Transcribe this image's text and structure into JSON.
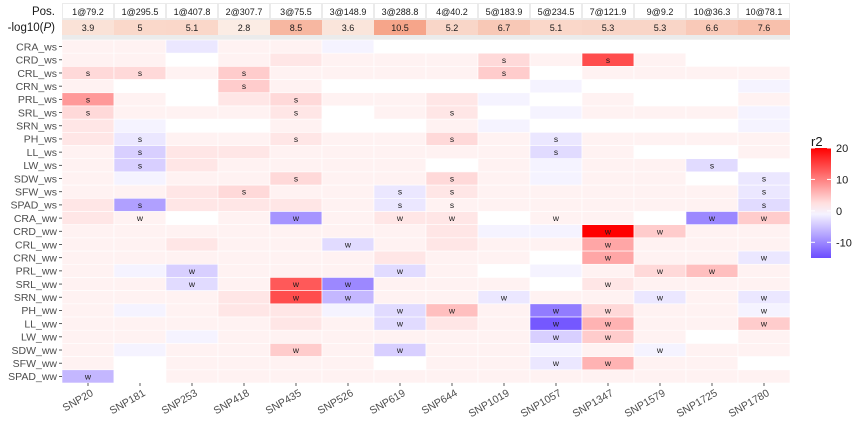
{
  "chart_data": {
    "type": "heatmap",
    "title": "",
    "xlabel": "",
    "ylabel": "",
    "header": {
      "pos_label": "Pos.",
      "logp_label": "-log10(P)",
      "positions": [
        "1@79.2",
        "1@295.5",
        "1@407.8",
        "2@307.7",
        "3@75.5",
        "3@148.9",
        "3@288.8",
        "4@40.2",
        "5@183.9",
        "5@234.5",
        "7@121.9",
        "9@9.2",
        "10@36.3",
        "10@78.1"
      ],
      "logp": [
        "3.9",
        "5",
        "5.1",
        "2.8",
        "8.5",
        "3.6",
        "10.5",
        "5.2",
        "6.7",
        "5.1",
        "5.3",
        "5.3",
        "6.6",
        "7.6"
      ]
    },
    "columns": [
      "SNP20",
      "SNP181",
      "SNP253",
      "SNP418",
      "SNP435",
      "SNP526",
      "SNP619",
      "SNP644",
      "SNP1019",
      "SNP1057",
      "SNP1347",
      "SNP1579",
      "SNP1725",
      "SNP1780"
    ],
    "rows": [
      "CRA_ws",
      "CRD_ws",
      "CRL_ws",
      "CRN_ws",
      "PRL_ws",
      "SRL_ws",
      "SRN_ws",
      "PH_ws",
      "LL_ws",
      "LW_ws",
      "SDW_ws",
      "SFW_ws",
      "SPAD_ws",
      "CRA_ww",
      "CRD_ww",
      "CRL_ww",
      "CRN_ww",
      "PRL_ww",
      "SRL_ww",
      "SRN_ww",
      "PH_ww",
      "LL_ww",
      "LW_ww",
      "SDW_ww",
      "SFW_ww",
      "SPAD_ww"
    ],
    "values": [
      [
        1,
        1,
        -2,
        1,
        1,
        -1,
        0,
        0,
        0,
        0,
        0,
        0,
        0,
        0
      ],
      [
        1,
        1,
        0,
        1,
        2,
        1,
        1,
        1,
        3,
        1,
        14,
        1,
        0,
        0
      ],
      [
        3,
        3,
        1,
        4,
        1,
        1,
        1,
        1,
        4,
        0,
        1,
        1,
        1,
        1
      ],
      [
        1,
        0,
        0,
        4,
        1,
        0,
        0,
        0,
        0,
        -1,
        0,
        0,
        0,
        -1
      ],
      [
        8,
        1,
        0,
        2,
        3,
        1,
        1,
        2,
        -1,
        0,
        1,
        0,
        0,
        1
      ],
      [
        3,
        1,
        1,
        1,
        2,
        0,
        1,
        2,
        0,
        -1,
        1,
        1,
        1,
        -1
      ],
      [
        2,
        -1,
        0,
        0,
        1,
        0,
        0,
        1,
        -1,
        0,
        0,
        0,
        0,
        -1
      ],
      [
        2,
        -2,
        1,
        1,
        2,
        1,
        1,
        3,
        1,
        -2,
        1,
        1,
        1,
        1
      ],
      [
        1,
        -4,
        2,
        2,
        1,
        1,
        1,
        1,
        1,
        -3,
        1,
        0,
        0,
        1
      ],
      [
        1,
        -4,
        2,
        1,
        1,
        1,
        1,
        0,
        1,
        -1,
        1,
        1,
        -3,
        0
      ],
      [
        1,
        -1,
        1,
        1,
        3,
        1,
        1,
        3,
        1,
        -1,
        1,
        1,
        0,
        -2
      ],
      [
        1,
        1,
        2,
        3,
        1,
        1,
        -2,
        2,
        1,
        1,
        1,
        1,
        1,
        -2
      ],
      [
        2,
        -8,
        2,
        2,
        2,
        1,
        -2,
        1,
        1,
        1,
        1,
        1,
        1,
        -3
      ],
      [
        2,
        1,
        0,
        1,
        -9,
        1,
        2,
        2,
        0,
        1,
        1,
        0,
        -10,
        4
      ],
      [
        1,
        1,
        1,
        1,
        1,
        1,
        1,
        2,
        -1,
        -1,
        20,
        4,
        1,
        1
      ],
      [
        1,
        1,
        2,
        1,
        1,
        -3,
        1,
        2,
        1,
        1,
        7,
        1,
        1,
        1
      ],
      [
        1,
        1,
        1,
        1,
        1,
        1,
        2,
        1,
        1,
        0,
        7,
        1,
        1,
        -2
      ],
      [
        1,
        -1,
        -4,
        1,
        1,
        1,
        -3,
        1,
        0,
        -1,
        1,
        3,
        5,
        1
      ],
      [
        1,
        1,
        -3,
        1,
        13,
        -10,
        1,
        1,
        1,
        0,
        2,
        1,
        1,
        1
      ],
      [
        1,
        1,
        1,
        2,
        14,
        -6,
        1,
        1,
        -2,
        1,
        1,
        -2,
        1,
        -2
      ],
      [
        1,
        -1,
        1,
        2,
        2,
        -1,
        -3,
        5,
        1,
        -11,
        3,
        1,
        1,
        -1
      ],
      [
        1,
        1,
        1,
        1,
        2,
        1,
        -3,
        2,
        1,
        -14,
        6,
        1,
        1,
        4
      ],
      [
        1,
        1,
        -1,
        1,
        1,
        1,
        1,
        1,
        1,
        -4,
        4,
        1,
        0,
        1
      ],
      [
        1,
        -1,
        1,
        1,
        4,
        1,
        -4,
        1,
        1,
        -1,
        1,
        -1,
        1,
        1
      ],
      [
        1,
        0,
        1,
        1,
        1,
        1,
        0,
        1,
        1,
        -2,
        6,
        1,
        1,
        0
      ],
      [
        -6,
        0,
        1,
        1,
        1,
        1,
        1,
        1,
        1,
        1,
        1,
        1,
        1,
        1
      ]
    ],
    "marks": [
      [
        "",
        "",
        "",
        "",
        "",
        "",
        "",
        "",
        "",
        "",
        "",
        "",
        "",
        ""
      ],
      [
        "",
        "",
        "",
        "",
        "",
        "",
        "",
        "",
        "s",
        "",
        "s",
        "",
        "",
        ""
      ],
      [
        "s",
        "s",
        "",
        "s",
        "",
        "",
        "",
        "",
        "s",
        "",
        "",
        "",
        "",
        ""
      ],
      [
        "",
        "",
        "",
        "s",
        "",
        "",
        "",
        "",
        "",
        "",
        "",
        "",
        "",
        ""
      ],
      [
        "s",
        "",
        "",
        "",
        "s",
        "",
        "",
        "",
        "",
        "",
        "",
        "",
        "",
        ""
      ],
      [
        "s",
        "",
        "",
        "",
        "s",
        "",
        "",
        "s",
        "",
        "",
        "",
        "",
        "",
        ""
      ],
      [
        "",
        "",
        "",
        "",
        "",
        "",
        "",
        "",
        "",
        "",
        "",
        "",
        "",
        ""
      ],
      [
        "",
        "s",
        "",
        "",
        "s",
        "",
        "",
        "s",
        "",
        "s",
        "",
        "",
        "",
        ""
      ],
      [
        "",
        "s",
        "",
        "",
        "",
        "",
        "",
        "",
        "",
        "s",
        "",
        "",
        "",
        ""
      ],
      [
        "",
        "s",
        "",
        "",
        "",
        "",
        "",
        "",
        "",
        "",
        "",
        "",
        "s",
        ""
      ],
      [
        "",
        "",
        "",
        "",
        "s",
        "",
        "",
        "s",
        "",
        "",
        "",
        "",
        "",
        "s"
      ],
      [
        "",
        "",
        "",
        "s",
        "",
        "",
        "s",
        "s",
        "",
        "",
        "",
        "",
        "",
        "s"
      ],
      [
        "",
        "s",
        "",
        "",
        "",
        "",
        "s",
        "s",
        "",
        "",
        "",
        "",
        "",
        "s"
      ],
      [
        "",
        "w",
        "",
        "",
        "w",
        "",
        "w",
        "w",
        "",
        "w",
        "",
        "",
        "w",
        "w"
      ],
      [
        "",
        "",
        "",
        "",
        "",
        "",
        "",
        "",
        "",
        "",
        "w",
        "w",
        "",
        ""
      ],
      [
        "",
        "",
        "",
        "",
        "",
        "w",
        "",
        "",
        "",
        "",
        "w",
        "",
        "",
        ""
      ],
      [
        "",
        "",
        "",
        "",
        "",
        "",
        "",
        "",
        "",
        "",
        "w",
        "",
        "",
        "w"
      ],
      [
        "",
        "",
        "w",
        "",
        "",
        "",
        "w",
        "",
        "",
        "",
        "",
        "w",
        "w",
        ""
      ],
      [
        "",
        "",
        "w",
        "",
        "w",
        "w",
        "",
        "",
        "",
        "",
        "w",
        "",
        "",
        ""
      ],
      [
        "",
        "",
        "",
        "",
        "w",
        "w",
        "",
        "",
        "w",
        "",
        "",
        "w",
        "",
        "w"
      ],
      [
        "",
        "",
        "",
        "",
        "",
        "",
        "w",
        "w",
        "",
        "w",
        "w",
        "",
        "",
        "w"
      ],
      [
        "",
        "",
        "",
        "",
        "",
        "",
        "w",
        "",
        "",
        "w",
        "w",
        "",
        "",
        "w"
      ],
      [
        "",
        "",
        "",
        "",
        "",
        "",
        "",
        "",
        "",
        "w",
        "w",
        "",
        "",
        ""
      ],
      [
        "",
        "",
        "",
        "",
        "w",
        "",
        "w",
        "",
        "",
        "",
        "",
        "w",
        "",
        ""
      ],
      [
        "",
        "",
        "",
        "",
        "",
        "",
        "",
        "",
        "",
        "w",
        "w",
        "",
        "",
        ""
      ],
      [
        "w",
        "",
        "",
        "",
        "",
        "",
        "",
        "",
        "",
        "",
        "",
        "",
        "",
        ""
      ]
    ],
    "zlim": [
      -15,
      20
    ],
    "legend": {
      "title": "r2",
      "placement": "right",
      "ticks": [
        20,
        10,
        0,
        -10
      ],
      "colors": {
        "low": "#6b4cff",
        "mid": "#ffffff",
        "high": "#ff0000"
      }
    },
    "colors": {
      "panel_bg": "#ebebeb",
      "grid": "#ffffff",
      "header_low": "#fbece4",
      "header_high": "#f6a58a",
      "text": "#1a1a1a",
      "axis_text": "#4d4d4d"
    }
  }
}
